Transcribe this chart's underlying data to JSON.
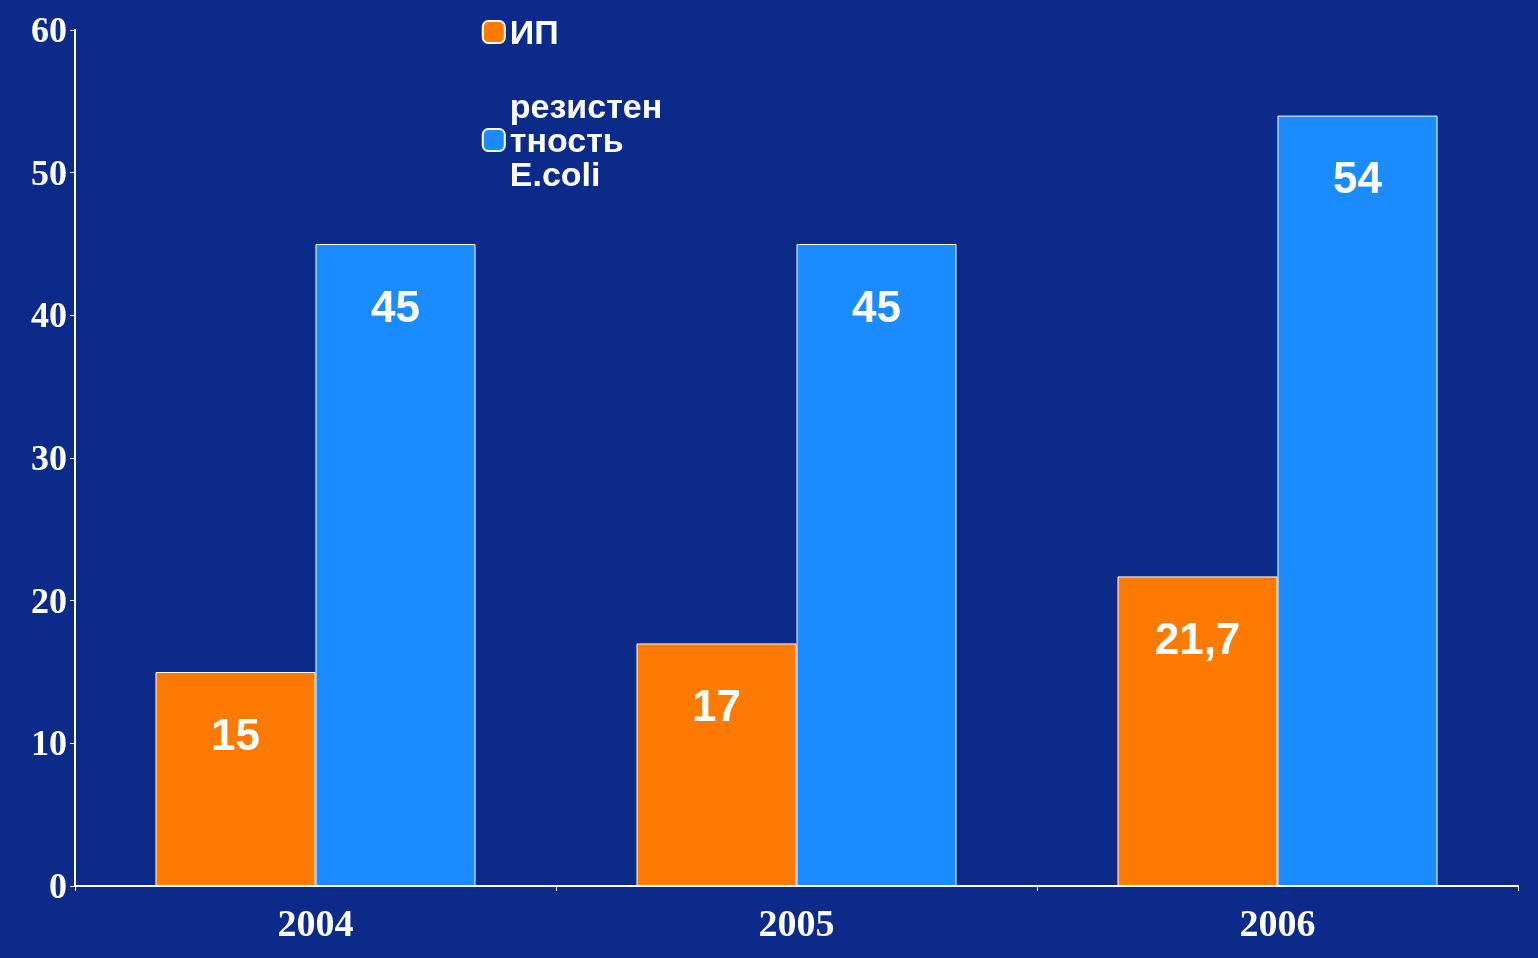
{
  "chart_data": {
    "type": "bar",
    "categories": [
      "2004",
      "2005",
      "2006"
    ],
    "series": [
      {
        "name": "ИП",
        "color": "#ff7a00",
        "values": [
          15,
          17,
          21.7
        ],
        "value_labels": [
          "15",
          "17",
          "21,7"
        ]
      },
      {
        "name": "резистентность E.coli",
        "color": "#1a8cff",
        "values": [
          45,
          45,
          54
        ],
        "value_labels": [
          "45",
          "45",
          "54"
        ]
      }
    ],
    "ylim": [
      0,
      60
    ],
    "yticks": [
      0,
      10,
      20,
      30,
      40,
      50,
      60
    ],
    "grid": false,
    "legend": "top"
  }
}
